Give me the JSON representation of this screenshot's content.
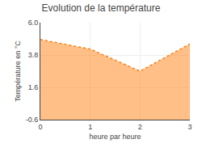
{
  "chart_data": {
    "type": "area",
    "title": "Evolution de la température",
    "xlabel": "heure par heure",
    "ylabel": "Température en °C",
    "x": [
      0,
      1,
      2,
      3
    ],
    "values": [
      4.85,
      4.2,
      2.7,
      4.55
    ],
    "xlim": [
      0,
      3
    ],
    "xticks": [
      0,
      1,
      2,
      3
    ],
    "ylim": [
      -0.6,
      6.0
    ],
    "yticks": [
      -0.6,
      1.6,
      3.8,
      {
        "value": 6.0,
        "label": "6.0"
      }
    ],
    "line_style": "dotted",
    "grid": true
  }
}
